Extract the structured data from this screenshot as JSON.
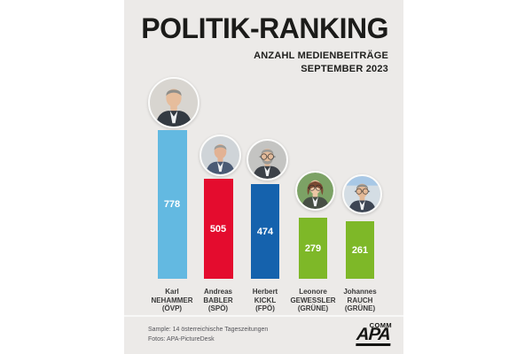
{
  "header": {
    "title": "POLITIK-RANKING",
    "subtitle1": "ANZAHL MEDIENBEITRÄGE",
    "subtitle2": "SEPTEMBER 2023"
  },
  "chart_data": {
    "type": "bar",
    "title": "POLITIK-RANKING",
    "subtitle": "ANZAHL MEDIENBEITRÄGE SEPTEMBER 2023",
    "categories": [
      "Karl NEHAMMER (ÖVP)",
      "Andreas BABLER (SPÖ)",
      "Herbert KICKL (FPÖ)",
      "Leonore GEWESSLER (GRÜNE)",
      "Johannes RAUCH (GRÜNE)"
    ],
    "values": [
      778,
      505,
      474,
      279,
      261
    ],
    "bar_colors": [
      "#63b9e1",
      "#e40c2e",
      "#1562ad",
      "#7eb828",
      "#7eb828"
    ],
    "ylim": [
      0,
      800
    ],
    "grid": false,
    "legend": false,
    "value_labels": "inside-center-white"
  },
  "bars": [
    {
      "value": 778,
      "first_name": "Karl",
      "last_name": "NEHAMMER",
      "party": "(ÖVP)",
      "color": "#63b9e1",
      "avatar": {
        "bg": "#d8d5d0",
        "skin": "#e6bd9c",
        "hair": "#8f8e8a",
        "suit": "#333a42",
        "glasses": false,
        "beard": false,
        "female": false
      }
    },
    {
      "value": 505,
      "first_name": "Andreas",
      "last_name": "BABLER",
      "party": "(SPÖ)",
      "color": "#e40c2e",
      "avatar": {
        "bg": "#cfd4d8",
        "skin": "#e2b294",
        "hair": "#9b9b97",
        "suit": "#4a5a74",
        "glasses": false,
        "beard": false,
        "female": false
      }
    },
    {
      "value": 474,
      "first_name": "Herbert",
      "last_name": "KICKL",
      "party": "(FPÖ)",
      "color": "#1562ad",
      "avatar": {
        "bg": "#c4c4c2",
        "skin": "#e3bb9b",
        "hair": "#9c9b97",
        "suit": "#3c4148",
        "glasses": true,
        "beard": true,
        "female": false
      }
    },
    {
      "value": 279,
      "first_name": "Leonore",
      "last_name": "GEWESSLER",
      "party": "(GRÜNE)",
      "color": "#7eb828",
      "avatar": {
        "bg": "#7ca265",
        "skin": "#ecc6a4",
        "hair": "#7a4a32",
        "suit": "#474f45",
        "glasses": true,
        "beard": false,
        "female": true
      }
    },
    {
      "value": 261,
      "first_name": "Johannes",
      "last_name": "RAUCH",
      "party": "(GRÜNE)",
      "color": "#7eb828",
      "avatar": {
        "bg": "#d4dde4",
        "bg2": "#a8c8e6",
        "skin": "#e3b896",
        "hair": "#8f8f8c",
        "suit": "#3e4654",
        "glasses": true,
        "beard": false,
        "female": false
      }
    }
  ],
  "footer": {
    "line1": "Sample: 14 österreichische Tageszeitungen",
    "line2": "Fotos: APA-PictureDesk"
  },
  "logo": {
    "main": "APA",
    "sub": "COMM"
  }
}
